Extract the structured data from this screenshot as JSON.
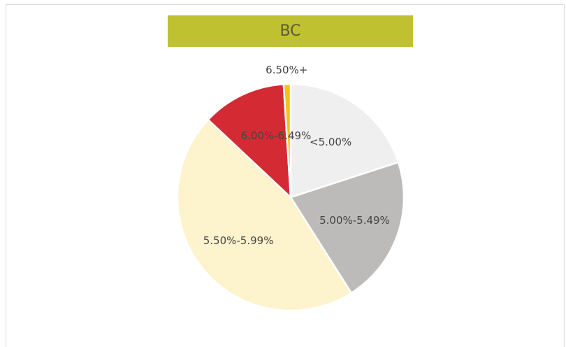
{
  "chart_data": {
    "type": "pie",
    "title": "BC",
    "categories": [
      "<5.00%",
      "5.00%-5.49%",
      "5.50%-5.99%",
      "6.00%-6.49%",
      "6.50%+"
    ],
    "values": [
      20,
      21,
      46,
      12,
      1
    ],
    "colors": [
      "#efefef",
      "#bdbbb9",
      "#fdf3cc",
      "#d42a34",
      "#f0c419"
    ]
  }
}
